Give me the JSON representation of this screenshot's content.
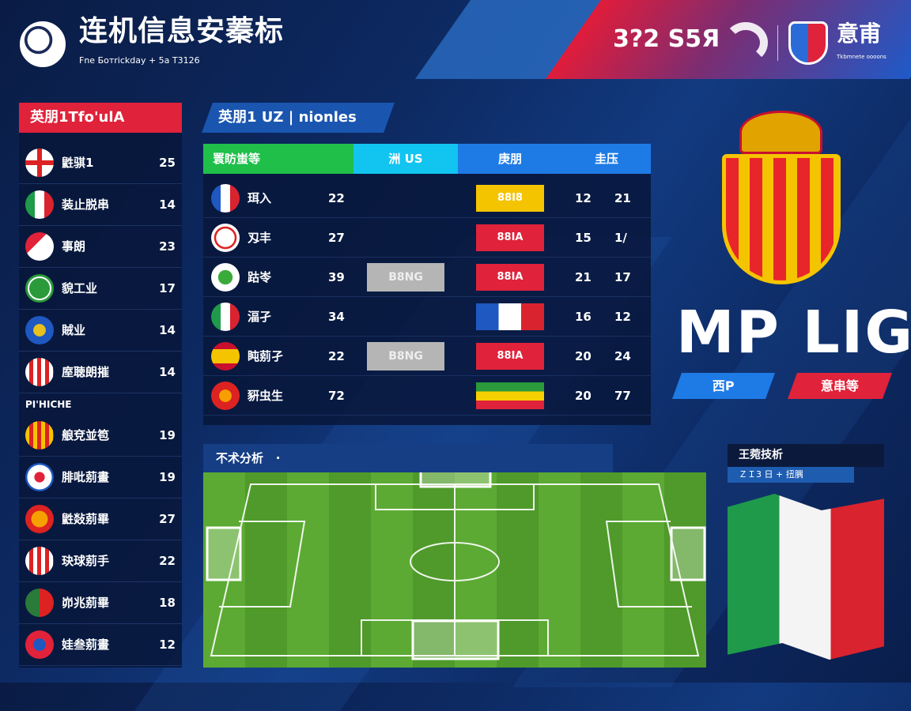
{
  "header": {
    "title": "连机信息安蓁标",
    "subtitle": "Fne Ботrickday + 5a T3126",
    "score": "3?2 S5Я",
    "partner_title": "意甫",
    "partner_subtitle": "Tkbmnete oooons"
  },
  "left_panel": {
    "title": "英朋1Tfo'ulA",
    "section_label": "PI'HICHE",
    "top_items": [
      {
        "name": "鼪骐1",
        "value": "25",
        "icon": "england-flag-icon"
      },
      {
        "name": "装止脱串",
        "value": "14",
        "icon": "italy-flag-icon"
      },
      {
        "name": "事朗",
        "value": "23",
        "icon": "red-white-badge-icon"
      },
      {
        "name": "貌工业",
        "value": "17",
        "icon": "green-cross-icon"
      },
      {
        "name": "賊业",
        "value": "14",
        "icon": "blue-crest-icon"
      },
      {
        "name": "庢聴朗摧",
        "value": "14",
        "icon": "striped-crest-icon"
      }
    ],
    "bottom_items": [
      {
        "name": "艆兗並笣",
        "value": "19",
        "icon": "catalan-crest-icon"
      },
      {
        "name": "腓吡莂畫",
        "value": "19",
        "icon": "blue-red-ball-icon"
      },
      {
        "name": "鼪敥莂畢",
        "value": "27",
        "icon": "orange-shield-icon"
      },
      {
        "name": "玦球莂手",
        "value": "22",
        "icon": "red-stripe-crest-icon"
      },
      {
        "name": "峁兆莂畢",
        "value": "18",
        "icon": "p-shield-icon"
      },
      {
        "name": "娃叁莂畫",
        "value": "12",
        "icon": "red-ring-icon"
      }
    ]
  },
  "table": {
    "title": "英朋1 UZ | nionles",
    "columns": [
      "瞏眆蚩等",
      "洲 US",
      "庚朋",
      "圭压"
    ],
    "rows": [
      {
        "name": "珥入",
        "icon": "france-flag-icon",
        "value": "22",
        "tag": "",
        "badge": "88I8",
        "badge_color": "#f5c400",
        "a": "12",
        "b": "21"
      },
      {
        "name": "刄丰",
        "icon": "red-circle-logo-icon",
        "value": "27",
        "tag": "",
        "badge": "88IA",
        "badge_color": "#e0223a",
        "a": "15",
        "b": "1/"
      },
      {
        "name": "跍岺",
        "icon": "green-logo-icon",
        "value": "39",
        "tag": "B8NG",
        "badge": "88IA",
        "badge_color": "#e0223a",
        "a": "21",
        "b": "17"
      },
      {
        "name": "湢孑",
        "icon": "italy-flag-icon",
        "value": "34",
        "tag": "",
        "badge": "",
        "badge_color": "france-flag",
        "a": "16",
        "b": "12"
      },
      {
        "name": "盹莂孑",
        "icon": "spain-flag-icon",
        "value": "22",
        "tag": "B8NG",
        "badge": "88IA",
        "badge_color": "#e0223a",
        "a": "20",
        "b": "24"
      },
      {
        "name": "豣虫生",
        "icon": "red-shield-icon",
        "value": "72",
        "tag": "",
        "badge": "",
        "badge_color": "tricolor-flag",
        "a": "20",
        "b": "77"
      }
    ]
  },
  "hero": {
    "text": "MP LIG",
    "btn_blue": "西P",
    "btn_red": "意串等"
  },
  "pitch": {
    "title": "不术分析",
    "dot": "·"
  },
  "analysis": {
    "title": "王菀技析",
    "subtitle": "ＺＩ3 日 + 扭腢"
  },
  "colors": {
    "red": "#e0223a",
    "blue": "#1e7be6",
    "green": "#1fbf4a",
    "cyan": "#12c4f0",
    "navy": "#0a1f4a"
  }
}
